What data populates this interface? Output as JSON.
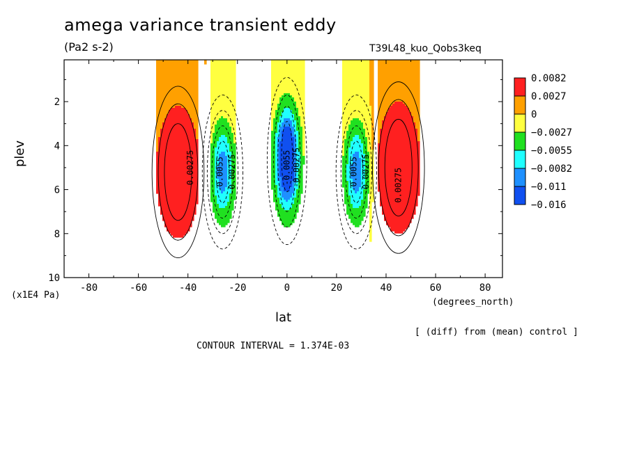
{
  "title": "amega variance transient eddy",
  "units": "(Pa2 s-2)",
  "run_name": "T39L48_kuo_Qobs3keq",
  "diff_note": "[ (diff) from (mean) control ]",
  "contour_interval": "CONTOUR INTERVAL = 1.374E-03",
  "chart_data": {
    "type": "heatmap",
    "title": "amega variance transient eddy",
    "subtitle": "(Pa2 s-2)",
    "xlabel": "lat",
    "x_units": "(degrees_north)",
    "ylabel": "plev",
    "y_units": "(x1E4 Pa)",
    "xlim": [
      -90,
      87
    ],
    "ylim": [
      10,
      0.1
    ],
    "x_ticks": [
      -80,
      -60,
      -40,
      -20,
      0,
      20,
      40,
      60,
      80
    ],
    "y_ticks": [
      2,
      4,
      6,
      8,
      10
    ],
    "legend": {
      "placement": "right",
      "labels": [
        "0.0082",
        "0.0027",
        "0",
        "−0.0027",
        "−0.0055",
        "−0.0082",
        "−0.011",
        "−0.016"
      ],
      "colors": [
        "#ff2020",
        "#ffa000",
        "#ffff40",
        "#20e020",
        "#20ffff",
        "#1e90ff",
        "#1050f0"
      ]
    },
    "contour_labels": [
      {
        "text": "0.00275",
        "lat": -38,
        "plev": 5.0
      },
      {
        "text": "-0.0055",
        "lat": -26,
        "plev": 5.3
      },
      {
        "text": "-0.00275",
        "lat": -21,
        "plev": 5.3
      },
      {
        "text": "-0.0055",
        "lat": 1,
        "plev": 5.0
      },
      {
        "text": "-0.00275",
        "lat": 5,
        "plev": 5.0
      },
      {
        "text": "-0.0055",
        "lat": 28,
        "plev": 5.3
      },
      {
        "text": "-0.00275",
        "lat": 33,
        "plev": 5.3
      },
      {
        "text": "0.00275",
        "lat": 46,
        "plev": 5.8
      }
    ],
    "features": [
      {
        "name": "southern positive max",
        "lat": -44,
        "plev": 5.2,
        "value": 0.0082
      },
      {
        "name": "southern negative min",
        "lat": -26,
        "plev": 5.2,
        "value": -0.0082
      },
      {
        "name": "equatorial negative min",
        "lat": 0,
        "plev": 4.6,
        "value": -0.016
      },
      {
        "name": "northern negative min",
        "lat": 28,
        "plev": 5.2,
        "value": -0.0082
      },
      {
        "name": "northern positive max",
        "lat": 45,
        "plev": 5.0,
        "value": 0.0082
      }
    ],
    "grid": false
  }
}
